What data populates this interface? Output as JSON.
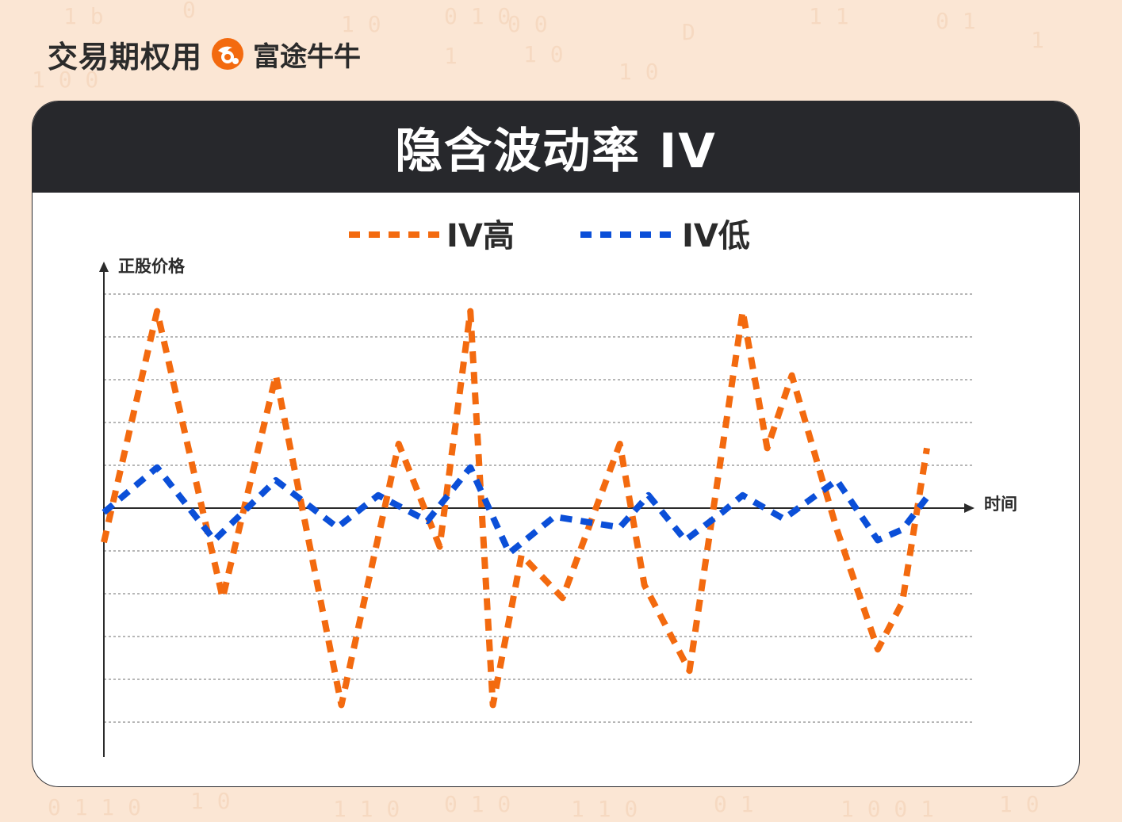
{
  "brand": {
    "text": "交易期权用",
    "sub": "富途牛牛"
  },
  "card": {
    "title": "隐含波动率 IV"
  },
  "colors": {
    "background": "#fbe6d4",
    "header": "#27282c",
    "iv_high": "#f36a0f",
    "iv_low": "#0b4fd8",
    "axis": "#2b2b2b",
    "grid": "#8a8a8a"
  },
  "chart_data": {
    "type": "line",
    "ylabel": "正股价格",
    "xlabel": "时间",
    "legend_position": "top-center",
    "grid": true,
    "ylim": [
      -5,
      5
    ],
    "series": [
      {
        "name": "IV高",
        "color": "#f36a0f",
        "x": [
          0,
          1.3,
          2.9,
          4.2,
          5.8,
          7.2,
          8.2,
          8.95,
          9.5,
          10.2,
          11.2,
          12.6,
          13.2,
          14.3,
          15.6,
          16.2,
          16.8,
          17.9,
          18.9,
          19.5,
          20.1
        ],
        "values": [
          -0.8,
          4.6,
          -2.1,
          3.1,
          -4.6,
          1.5,
          -0.9,
          4.6,
          -4.6,
          -1.1,
          -2.1,
          1.5,
          -1.8,
          -3.8,
          4.6,
          1.4,
          3.1,
          -0.5,
          -3.3,
          -2.2,
          1.4
        ]
      },
      {
        "name": "IV低",
        "color": "#0b4fd8",
        "x": [
          0,
          1.3,
          2.7,
          4.2,
          5.7,
          6.7,
          7.9,
          8.95,
          9.9,
          11.0,
          12.6,
          13.3,
          14.2,
          15.1,
          15.6,
          16.6,
          17.9,
          18.9,
          19.5,
          20.1
        ],
        "values": [
          -0.1,
          0.95,
          -0.75,
          0.65,
          -0.45,
          0.3,
          -0.3,
          0.95,
          -1.05,
          -0.2,
          -0.45,
          0.3,
          -0.75,
          -0.1,
          0.3,
          -0.25,
          0.65,
          -0.75,
          -0.5,
          0.25
        ]
      }
    ]
  }
}
